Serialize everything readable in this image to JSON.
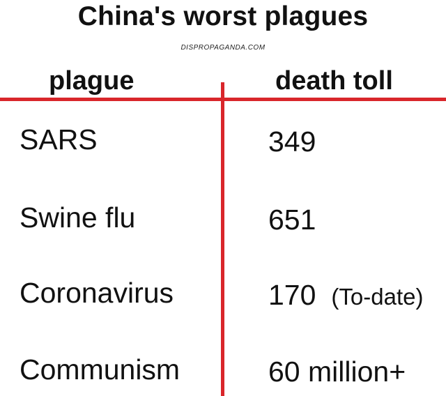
{
  "title": "China's worst plagues",
  "watermark": "DISPROPAGANDA.COM",
  "headers": {
    "plague": "plague",
    "death_toll": "death toll"
  },
  "colors": {
    "rule": "#d9262b",
    "text": "#111111",
    "background": "#ffffff"
  },
  "rows": [
    {
      "plague": "SARS",
      "toll": "349",
      "note": ""
    },
    {
      "plague": "Swine flu",
      "toll": "651",
      "note": ""
    },
    {
      "plague": "Coronavirus",
      "toll": "170",
      "note": "(To-date)"
    },
    {
      "plague": "Communism",
      "toll": "60 million+",
      "note": ""
    }
  ]
}
